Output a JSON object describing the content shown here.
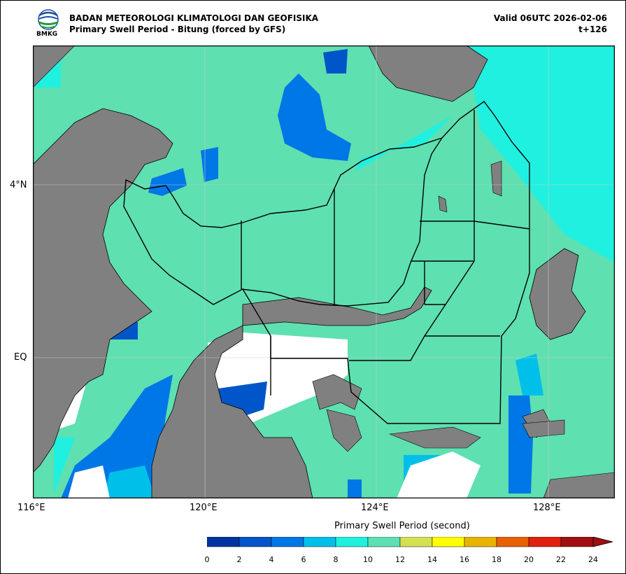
{
  "header": {
    "agency": "BADAN METEOROLOGI KLIMATOLOGI DAN GEOFISIKA",
    "subtitle": "Primary Swell Period - Bitung (forced by GFS)",
    "valid": "Valid 06UTC 2026-02-06",
    "lead": "t+126",
    "logo_text": "BMKG"
  },
  "axes": {
    "lon_labels": [
      "116°E",
      "120°E",
      "124°E",
      "128°E"
    ],
    "lat_labels": [
      "4°N",
      "EQ"
    ]
  },
  "colorbar": {
    "title": "Primary Swell Period (second)",
    "ticks": [
      "0",
      "2",
      "4",
      "6",
      "8",
      "10",
      "12",
      "14",
      "16",
      "18",
      "20",
      "22",
      "24"
    ],
    "colors": [
      "#0033a0",
      "#0055c8",
      "#0077e6",
      "#00c0ea",
      "#20f0e0",
      "#5ee0b0",
      "#d4e050",
      "#ffff00",
      "#e8b400",
      "#e86000",
      "#e02010",
      "#a01010"
    ]
  },
  "map_colors": {
    "land": "#808080",
    "nodata": "#ffffff"
  }
}
